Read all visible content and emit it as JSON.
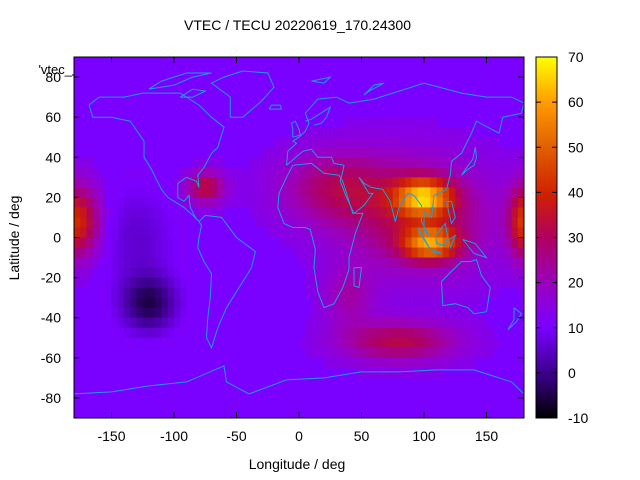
{
  "chart_data": {
    "type": "heatmap",
    "title": "VTEC / TECU 20220619_170.24300",
    "xlabel": "Longitude / deg",
    "ylabel": "Latitude / deg",
    "xlim": [
      -180,
      180
    ],
    "ylim": [
      -90,
      90
    ],
    "xticks": [
      "-150",
      "-100",
      "-50",
      "0",
      "50",
      "100",
      "150"
    ],
    "yticks": [
      "-80",
      "-60",
      "-40",
      "-20",
      "0",
      "20",
      "40",
      "60",
      "80"
    ],
    "legend_label": "'vtec_",
    "colorbar": {
      "range": [
        -10,
        70
      ],
      "ticks": [
        "-10",
        "0",
        "10",
        "20",
        "30",
        "40",
        "50",
        "60",
        "70"
      ],
      "palette": [
        "#000000",
        "#3a0088",
        "#7a00ff",
        "#b00060",
        "#e03000",
        "#ff8800",
        "#ffff00"
      ]
    },
    "coastline_color": "#1a9fe0",
    "features": [
      {
        "lon": 100,
        "lat": 15,
        "peak": 68
      },
      {
        "lon": -175,
        "lat": 10,
        "peak": 45
      },
      {
        "lon": -75,
        "lat": 25,
        "peak": 38
      },
      {
        "lon": 80,
        "lat": -55,
        "peak": 35
      },
      {
        "lon": -120,
        "lat": -35,
        "low": -8
      }
    ]
  }
}
